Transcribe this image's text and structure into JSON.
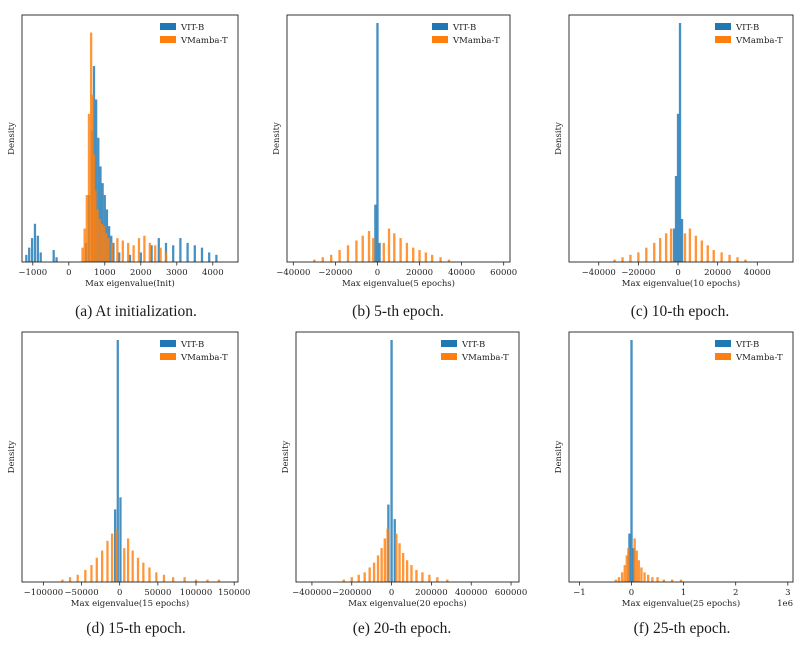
{
  "colors": {
    "vit": "#1f77b4",
    "vmamba": "#ff7f0e"
  },
  "chart_data": [
    {
      "type": "histogram",
      "caption": "(a) At initialization.",
      "xlabel": "Max eigenvalue(Init)",
      "ylabel": "Density",
      "xlim": [
        -1300,
        4700
      ],
      "xticks": [
        -1000,
        0,
        1000,
        2000,
        3000,
        4000
      ],
      "xtick_labels": [
        "−1000",
        "0",
        "1000",
        "2000",
        "3000",
        "4000"
      ],
      "legend": [
        "VIT-B",
        "VMamba-T"
      ],
      "legend_position": "top-right",
      "series": [
        {
          "name": "VIT-B",
          "color": "vit",
          "bins": [
            [
              -1180,
              0.03
            ],
            [
              -1100,
              0.06
            ],
            [
              -1020,
              0.1
            ],
            [
              -940,
              0.16
            ],
            [
              -860,
              0.11
            ],
            [
              -780,
              0.04
            ],
            [
              -420,
              0.05
            ],
            [
              -340,
              0.02
            ],
            [
              480,
              0.08
            ],
            [
              560,
              0.28
            ],
            [
              640,
              0.55
            ],
            [
              700,
              0.82
            ],
            [
              760,
              0.68
            ],
            [
              820,
              0.52
            ],
            [
              880,
              0.4
            ],
            [
              940,
              0.33
            ],
            [
              1000,
              0.28
            ],
            [
              1060,
              0.22
            ],
            [
              1120,
              0.15
            ],
            [
              1180,
              0.11
            ],
            [
              1240,
              0.08
            ],
            [
              1400,
              0.04
            ],
            [
              1700,
              0.03
            ],
            [
              2000,
              0.04
            ],
            [
              2300,
              0.07
            ],
            [
              2500,
              0.1
            ],
            [
              2700,
              0.08
            ],
            [
              2900,
              0.07
            ],
            [
              3100,
              0.1
            ],
            [
              3300,
              0.08
            ],
            [
              3500,
              0.07
            ],
            [
              3700,
              0.06
            ],
            [
              3900,
              0.04
            ],
            [
              4100,
              0.03
            ]
          ]
        },
        {
          "name": "VMamba-T",
          "color": "vmamba",
          "bins": [
            [
              380,
              0.06
            ],
            [
              440,
              0.14
            ],
            [
              500,
              0.28
            ],
            [
              560,
              0.62
            ],
            [
              620,
              0.96
            ],
            [
              660,
              0.7
            ],
            [
              700,
              0.45
            ],
            [
              740,
              0.3
            ],
            [
              800,
              0.22
            ],
            [
              860,
              0.18
            ],
            [
              920,
              0.16
            ],
            [
              980,
              0.15
            ],
            [
              1040,
              0.12
            ],
            [
              1100,
              0.1
            ],
            [
              1200,
              0.08
            ],
            [
              1350,
              0.1
            ],
            [
              1500,
              0.09
            ],
            [
              1650,
              0.08
            ],
            [
              1800,
              0.07
            ],
            [
              1950,
              0.1
            ],
            [
              2100,
              0.11
            ],
            [
              2250,
              0.08
            ],
            [
              2400,
              0.07
            ],
            [
              2550,
              0.06
            ],
            [
              2700,
              0.04
            ]
          ]
        }
      ]
    },
    {
      "type": "histogram",
      "caption": "(b) 5-th epoch.",
      "xlabel": "Max eigenvalue(5 epochs)",
      "ylabel": "Density",
      "xlim": [
        -43000,
        63000
      ],
      "xticks": [
        -40000,
        -20000,
        0,
        20000,
        40000,
        60000
      ],
      "xtick_labels": [
        "−40000",
        "−20000",
        "0",
        "20000",
        "40000",
        "60000"
      ],
      "legend": [
        "VIT-B",
        "VMamba-T"
      ],
      "legend_position": "top-right",
      "series": [
        {
          "name": "VIT-B",
          "color": "vit",
          "bins": [
            [
              -1000,
              0.24
            ],
            [
              0,
              1.0
            ],
            [
              1000,
              0.08
            ]
          ]
        },
        {
          "name": "VMamba-T",
          "color": "vmamba",
          "bins": [
            [
              -30000,
              0.01
            ],
            [
              -26000,
              0.02
            ],
            [
              -22000,
              0.03
            ],
            [
              -18000,
              0.05
            ],
            [
              -14000,
              0.07
            ],
            [
              -10000,
              0.09
            ],
            [
              -7000,
              0.11
            ],
            [
              -4000,
              0.13
            ],
            [
              -2000,
              0.1
            ],
            [
              3000,
              0.08
            ],
            [
              5500,
              0.14
            ],
            [
              8000,
              0.12
            ],
            [
              11000,
              0.1
            ],
            [
              14000,
              0.08
            ],
            [
              17000,
              0.06
            ],
            [
              20000,
              0.05
            ],
            [
              23000,
              0.04
            ],
            [
              26000,
              0.03
            ],
            [
              30000,
              0.02
            ],
            [
              34000,
              0.01
            ]
          ]
        }
      ]
    },
    {
      "type": "histogram",
      "caption": "(c) 10-th epoch.",
      "xlabel": "Max eigenvalue(10 epochs)",
      "ylabel": "Density",
      "xlim": [
        -55000,
        58000
      ],
      "xticks": [
        -40000,
        -20000,
        0,
        20000,
        40000
      ],
      "xtick_labels": [
        "−40000",
        "−20000",
        "0",
        "20000",
        "40000"
      ],
      "legend": [
        "VIT-B",
        "VMamba-T"
      ],
      "legend_position": "top-right",
      "series": [
        {
          "name": "VIT-B",
          "color": "vit",
          "bins": [
            [
              -2000,
              0.14
            ],
            [
              -1000,
              0.36
            ],
            [
              0,
              0.62
            ],
            [
              1000,
              1.0
            ],
            [
              2000,
              0.18
            ]
          ]
        },
        {
          "name": "VMamba-T",
          "color": "vmamba",
          "bins": [
            [
              -32000,
              0.01
            ],
            [
              -28000,
              0.02
            ],
            [
              -24000,
              0.03
            ],
            [
              -20000,
              0.04
            ],
            [
              -16000,
              0.06
            ],
            [
              -12000,
              0.08
            ],
            [
              -9000,
              0.1
            ],
            [
              -6000,
              0.12
            ],
            [
              -3500,
              0.14
            ],
            [
              3500,
              0.12
            ],
            [
              6000,
              0.14
            ],
            [
              9000,
              0.11
            ],
            [
              12000,
              0.09
            ],
            [
              15000,
              0.07
            ],
            [
              18000,
              0.05
            ],
            [
              22000,
              0.04
            ],
            [
              26000,
              0.03
            ],
            [
              30000,
              0.02
            ],
            [
              34000,
              0.01
            ]
          ]
        }
      ]
    },
    {
      "type": "histogram",
      "caption": "(d) 15-th epoch.",
      "xlabel": "Max eigenvalue(15 epochs)",
      "ylabel": "Density",
      "xlim": [
        -128000,
        155000
      ],
      "xticks": [
        -100000,
        -50000,
        0,
        50000,
        100000,
        150000
      ],
      "xtick_labels": [
        "−100000",
        "−50000",
        "0",
        "50000",
        "100000",
        "150000"
      ],
      "legend": [
        "VIT-B",
        "VMamba-T"
      ],
      "legend_position": "top-right",
      "series": [
        {
          "name": "VIT-B",
          "color": "vit",
          "bins": [
            [
              -6000,
              0.3
            ],
            [
              -2500,
              1.0
            ],
            [
              1000,
              0.35
            ]
          ]
        },
        {
          "name": "VMamba-T",
          "color": "vmamba",
          "bins": [
            [
              -75000,
              0.01
            ],
            [
              -65000,
              0.02
            ],
            [
              -55000,
              0.03
            ],
            [
              -45000,
              0.05
            ],
            [
              -37000,
              0.07
            ],
            [
              -30000,
              0.1
            ],
            [
              -23000,
              0.13
            ],
            [
              -16000,
              0.17
            ],
            [
              -10000,
              0.2
            ],
            [
              -4000,
              0.22
            ],
            [
              6000,
              0.14
            ],
            [
              11000,
              0.18
            ],
            [
              17000,
              0.13
            ],
            [
              24000,
              0.1
            ],
            [
              31000,
              0.08
            ],
            [
              39000,
              0.06
            ],
            [
              48000,
              0.04
            ],
            [
              58000,
              0.03
            ],
            [
              70000,
              0.02
            ],
            [
              85000,
              0.02
            ],
            [
              100000,
              0.01
            ],
            [
              115000,
              0.01
            ],
            [
              130000,
              0.01
            ]
          ]
        }
      ]
    },
    {
      "type": "histogram",
      "caption": "(e) 20-th epoch.",
      "xlabel": "Max eigenvalue(20 epochs)",
      "ylabel": "Density",
      "xlim": [
        -480000,
        640000
      ],
      "xticks": [
        -400000,
        -200000,
        0,
        200000,
        400000,
        600000
      ],
      "xtick_labels": [
        "−400000",
        "−200000",
        "0",
        "200000",
        "400000",
        "600000"
      ],
      "legend": [
        "VIT-B",
        "VMamba-T"
      ],
      "legend_position": "top-right",
      "series": [
        {
          "name": "VIT-B",
          "color": "vit",
          "bins": [
            [
              -16000,
              0.32
            ],
            [
              0,
              1.0
            ],
            [
              16000,
              0.26
            ]
          ]
        },
        {
          "name": "VMamba-T",
          "color": "vmamba",
          "bins": [
            [
              -240000,
              0.01
            ],
            [
              -200000,
              0.02
            ],
            [
              -165000,
              0.03
            ],
            [
              -135000,
              0.04
            ],
            [
              -110000,
              0.06
            ],
            [
              -88000,
              0.08
            ],
            [
              -68000,
              0.11
            ],
            [
              -50000,
              0.14
            ],
            [
              -34000,
              0.18
            ],
            [
              -20000,
              0.22
            ],
            [
              24000,
              0.2
            ],
            [
              40000,
              0.16
            ],
            [
              58000,
              0.12
            ],
            [
              78000,
              0.09
            ],
            [
              100000,
              0.07
            ],
            [
              125000,
              0.05
            ],
            [
              155000,
              0.04
            ],
            [
              190000,
              0.03
            ],
            [
              230000,
              0.02
            ],
            [
              280000,
              0.01
            ]
          ]
        }
      ]
    },
    {
      "type": "histogram",
      "caption": "(f) 25-th epoch.",
      "xlabel": "Max eigenvalue(25 epochs)",
      "ylabel": "Density",
      "xlim": [
        -1.2,
        3.1
      ],
      "xticks": [
        -1,
        0,
        1,
        2,
        3
      ],
      "xtick_labels": [
        "−1",
        "0",
        "1",
        "2",
        "3"
      ],
      "offset_label": "1e6",
      "legend": [
        "VIT-B",
        "VMamba-T"
      ],
      "legend_position": "top-right",
      "series": [
        {
          "name": "VIT-B",
          "color": "vit",
          "bins": [
            [
              -0.04,
              0.2
            ],
            [
              0.0,
              1.0
            ],
            [
              0.04,
              0.14
            ]
          ]
        },
        {
          "name": "VMamba-T",
          "color": "vmamba",
          "bins": [
            [
              -0.3,
              0.01
            ],
            [
              -0.24,
              0.02
            ],
            [
              -0.18,
              0.04
            ],
            [
              -0.13,
              0.07
            ],
            [
              -0.09,
              0.11
            ],
            [
              -0.06,
              0.14
            ],
            [
              0.06,
              0.18
            ],
            [
              0.1,
              0.13
            ],
            [
              0.14,
              0.09
            ],
            [
              0.19,
              0.06
            ],
            [
              0.25,
              0.04
            ],
            [
              0.32,
              0.03
            ],
            [
              0.4,
              0.02
            ],
            [
              0.5,
              0.02
            ],
            [
              0.62,
              0.01
            ],
            [
              0.78,
              0.01
            ],
            [
              0.95,
              0.01
            ]
          ]
        }
      ]
    }
  ]
}
